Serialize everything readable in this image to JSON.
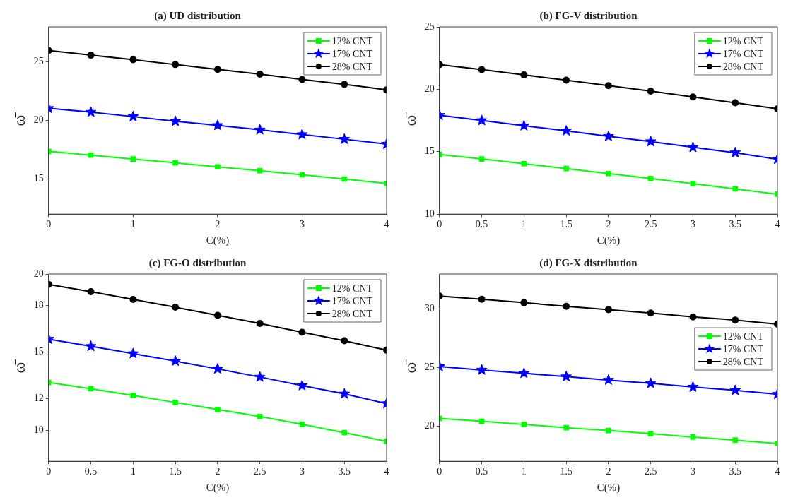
{
  "chart_data": [
    {
      "type": "line",
      "title": "(a) UD distribution",
      "xlabel": "C(%)",
      "ylabel": "ω̄",
      "x": [
        0,
        0.5,
        1,
        1.5,
        2,
        2.5,
        3,
        3.5,
        4
      ],
      "xlim": [
        0,
        4
      ],
      "xticks": [
        0,
        1,
        2,
        3,
        4
      ],
      "ylim": [
        12,
        28
      ],
      "yticks": [
        15,
        20,
        25
      ],
      "legend": "top right",
      "series": [
        {
          "name": "12% CNT",
          "color": "#00ff00",
          "marker": "square",
          "values": [
            17.36,
            17.04,
            16.71,
            16.38,
            16.04,
            15.71,
            15.36,
            15.0,
            14.62
          ]
        },
        {
          "name": "17% CNT",
          "color": "#0000ff",
          "marker": "star",
          "values": [
            21.04,
            20.71,
            20.33,
            19.93,
            19.58,
            19.2,
            18.8,
            18.4,
            17.98
          ]
        },
        {
          "name": "28% CNT",
          "color": "#000000",
          "marker": "circle",
          "values": [
            25.98,
            25.58,
            25.2,
            24.78,
            24.36,
            23.96,
            23.51,
            23.09,
            22.62
          ]
        }
      ]
    },
    {
      "type": "line",
      "title": "(b) FG-V distribution",
      "xlabel": "C(%)",
      "ylabel": "ω̄",
      "x": [
        0,
        0.5,
        1,
        1.5,
        2,
        2.5,
        3,
        3.5,
        4
      ],
      "xlim": [
        0,
        4
      ],
      "xticks": [
        0,
        0.5,
        1,
        1.5,
        2,
        2.5,
        3,
        3.5,
        4
      ],
      "ylim": [
        10,
        25
      ],
      "yticks": [
        10,
        15,
        20,
        25
      ],
      "legend": "top right",
      "series": [
        {
          "name": "12% CNT",
          "color": "#00ff00",
          "marker": "square",
          "values": [
            14.77,
            14.42,
            14.04,
            13.65,
            13.25,
            12.85,
            12.44,
            12.02,
            11.6
          ]
        },
        {
          "name": "17% CNT",
          "color": "#0000ff",
          "marker": "star",
          "values": [
            17.92,
            17.5,
            17.08,
            16.67,
            16.23,
            15.81,
            15.35,
            14.92,
            14.4
          ]
        },
        {
          "name": "28% CNT",
          "color": "#000000",
          "marker": "circle",
          "values": [
            21.98,
            21.58,
            21.15,
            20.73,
            20.29,
            19.85,
            19.38,
            18.92,
            18.44
          ]
        }
      ]
    },
    {
      "type": "line",
      "title": "(c) FG-O distribution",
      "xlabel": "C(%)",
      "ylabel": "ω̄",
      "x": [
        0,
        0.5,
        1,
        1.5,
        2,
        2.5,
        3,
        3.5,
        4
      ],
      "xlim": [
        0,
        4
      ],
      "xticks": [
        0,
        0.5,
        1,
        1.5,
        2,
        2.5,
        3,
        3.5,
        4
      ],
      "ylim": [
        8,
        20
      ],
      "yticks": [
        10,
        12,
        15,
        18,
        20
      ],
      "legend": "top right",
      "series": [
        {
          "name": "12% CNT",
          "color": "#00ff00",
          "marker": "square",
          "values": [
            13.05,
            12.65,
            12.22,
            11.77,
            11.32,
            10.87,
            10.37,
            9.83,
            9.28
          ]
        },
        {
          "name": "17% CNT",
          "color": "#0000ff",
          "marker": "star",
          "values": [
            15.83,
            15.37,
            14.9,
            14.42,
            13.92,
            13.4,
            12.85,
            12.32,
            11.7
          ]
        },
        {
          "name": "28% CNT",
          "color": "#000000",
          "marker": "circle",
          "values": [
            19.33,
            18.87,
            18.37,
            17.87,
            17.35,
            16.83,
            16.27,
            15.72,
            15.12
          ]
        }
      ]
    },
    {
      "type": "line",
      "title": "(d) FG-X distribution",
      "xlabel": "C(%)",
      "ylabel": "ω̄",
      "x": [
        0,
        0.5,
        1,
        1.5,
        2,
        2.5,
        3,
        3.5,
        4
      ],
      "xlim": [
        0,
        4
      ],
      "xticks": [
        0,
        0.5,
        1,
        1.5,
        2,
        2.5,
        3,
        3.5,
        4
      ],
      "ylim": [
        17,
        33
      ],
      "yticks": [
        20,
        25,
        30
      ],
      "legend": "right",
      "series": [
        {
          "name": "12% CNT",
          "color": "#00ff00",
          "marker": "square",
          "values": [
            20.66,
            20.42,
            20.15,
            19.87,
            19.63,
            19.36,
            19.07,
            18.81,
            18.52
          ]
        },
        {
          "name": "17% CNT",
          "color": "#0000ff",
          "marker": "star",
          "values": [
            25.09,
            24.8,
            24.52,
            24.23,
            23.94,
            23.66,
            23.35,
            23.06,
            22.73
          ]
        },
        {
          "name": "28% CNT",
          "color": "#000000",
          "marker": "circle",
          "values": [
            31.12,
            30.84,
            30.55,
            30.24,
            29.96,
            29.67,
            29.34,
            29.07,
            28.72
          ]
        }
      ]
    }
  ]
}
